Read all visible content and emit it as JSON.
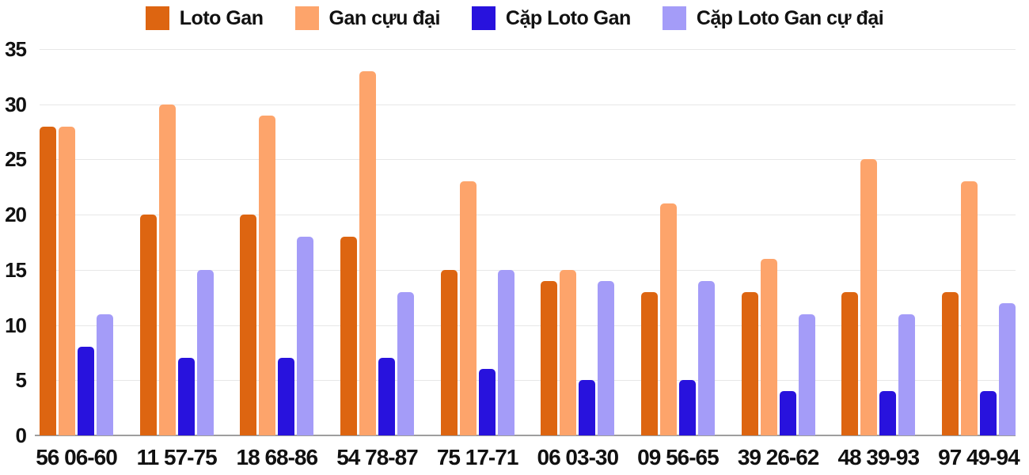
{
  "colors": {
    "background": "#ffffff",
    "grid": "#e7e7e7",
    "axis": "#9e9e9e",
    "text": "#111111"
  },
  "chart_data": {
    "type": "bar",
    "title": "",
    "xlabel": "",
    "ylabel": "",
    "grid": true,
    "legend_position": "top",
    "ylim": [
      0,
      35
    ],
    "yticks": [
      0,
      5,
      10,
      15,
      20,
      25,
      30,
      35
    ],
    "categories": [
      "56 06-60",
      "11 57-75",
      "18 68-86",
      "54 78-87",
      "75 17-71",
      "06 03-30",
      "09 56-65",
      "39 26-62",
      "48 39-93",
      "97 49-94"
    ],
    "series": [
      {
        "name": "Loto Gan",
        "color": "#dd6511",
        "values": [
          28,
          20,
          20,
          18,
          15,
          14,
          13,
          13,
          13,
          13
        ]
      },
      {
        "name": "Gan cựu đại",
        "color": "#fda46b",
        "values": [
          28,
          30,
          29,
          33,
          23,
          15,
          21,
          16,
          25,
          23
        ]
      },
      {
        "name": "Cặp Loto Gan",
        "color": "#2812dd",
        "values": [
          8,
          7,
          7,
          7,
          6,
          5,
          5,
          4,
          4,
          4
        ]
      },
      {
        "name": "Cặp Loto Gan cự đại",
        "color": "#a49cf8",
        "values": [
          11,
          15,
          18,
          13,
          15,
          14,
          14,
          11,
          11,
          12
        ]
      }
    ]
  }
}
